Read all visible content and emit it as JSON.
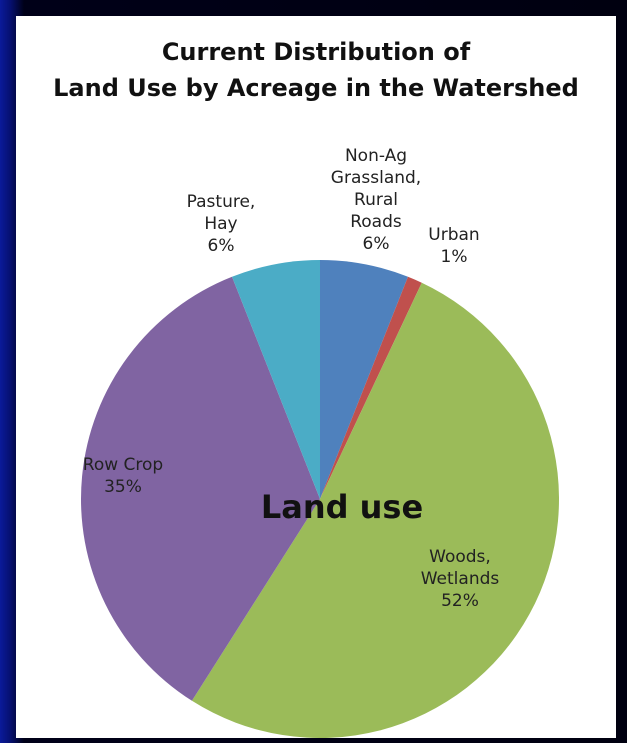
{
  "chart_data": {
    "type": "pie",
    "title_lines": [
      "Current Distribution of",
      "Land Use by Acreage in the Watershed"
    ],
    "center_label": "Land use",
    "start_angle_deg": 0,
    "direction": "clockwise",
    "slices": [
      {
        "name": "Non-Ag Grassland, Rural Roads",
        "value": 6,
        "label_lines": [
          "Non-Ag",
          "Grassland,",
          "Rural",
          "Roads"
        ],
        "pct_text": "6%",
        "color": "#4f81bd"
      },
      {
        "name": "Urban",
        "value": 1,
        "label_lines": [
          "Urban"
        ],
        "pct_text": "1%",
        "color": "#c0504d"
      },
      {
        "name": "Woods, Wetlands",
        "value": 52,
        "label_lines": [
          "Woods,",
          "Wetlands"
        ],
        "pct_text": "52%",
        "color": "#9bbb59"
      },
      {
        "name": "Row Crop",
        "value": 35,
        "label_lines": [
          "Row Crop"
        ],
        "pct_text": "35%",
        "color": "#8064a2"
      },
      {
        "name": "Pasture, Hay",
        "value": 6,
        "label_lines": [
          "Pasture,",
          "Hay"
        ],
        "pct_text": "6%",
        "color": "#4bacc6"
      }
    ]
  }
}
